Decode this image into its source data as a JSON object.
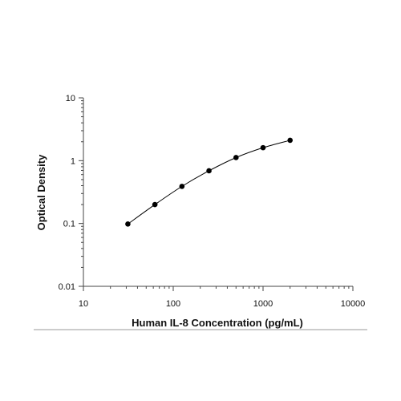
{
  "chart_data": {
    "type": "scatter",
    "title": "",
    "xlabel": "Human IL-8 Concentration (pg/mL)",
    "ylabel": "Optical Density",
    "x_scale": "log",
    "y_scale": "log",
    "xlim": [
      10,
      10000
    ],
    "ylim": [
      0.01,
      10
    ],
    "x_ticks": [
      "10",
      "100",
      "1000",
      "10000"
    ],
    "y_ticks": [
      "10",
      "1",
      "0.1",
      "0.01"
    ],
    "grid": false,
    "legend": "none",
    "series": [
      {
        "x": [
          31.25,
          62.5,
          125,
          250,
          500,
          1000,
          2000
        ],
        "y": [
          0.098,
          0.2,
          0.39,
          0.69,
          1.12,
          1.61,
          2.11
        ],
        "marker": "circle",
        "fit_curve": true
      }
    ],
    "colors": {
      "marker": "#000000",
      "curve": "#000000",
      "axis": "#444444",
      "rule": "#9a9a9a"
    }
  }
}
